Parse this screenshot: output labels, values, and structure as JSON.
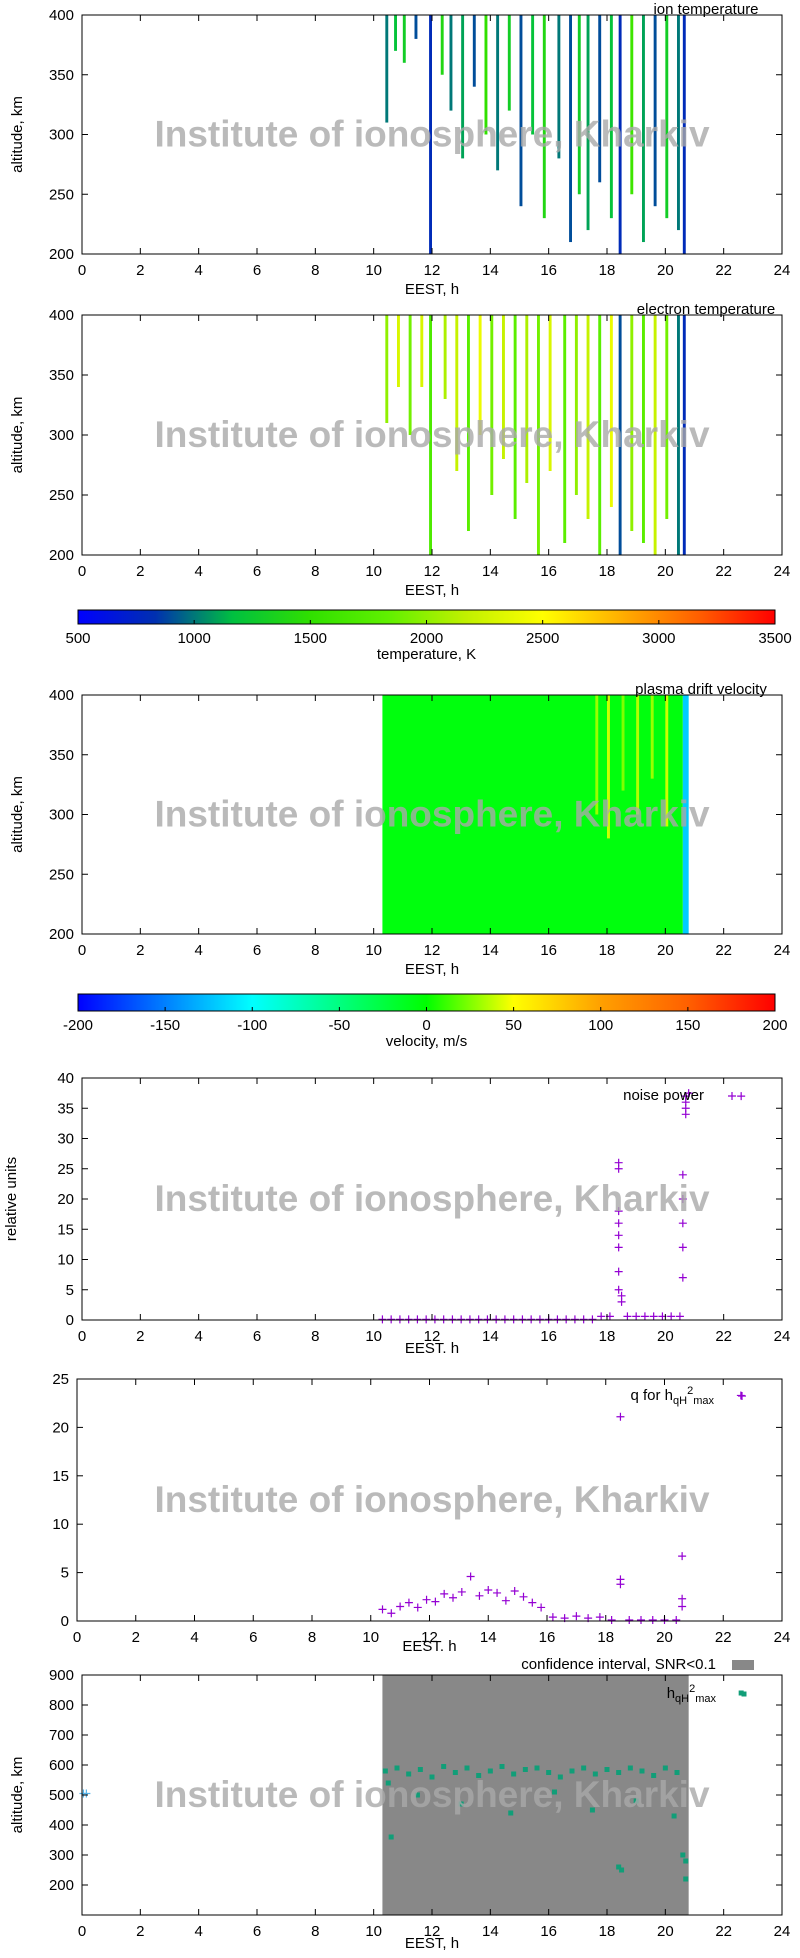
{
  "watermark": "Institute of ionosphere, Kharkiv",
  "chart_data": [
    {
      "type": "heatmap",
      "title": "ion temperature",
      "xlabel": "EEST, h",
      "ylabel": "altitude, km",
      "xlim": [
        0,
        24
      ],
      "xticks": [
        0,
        2,
        4,
        6,
        8,
        10,
        12,
        14,
        16,
        18,
        20,
        22,
        24
      ],
      "ylim": [
        200,
        400
      ],
      "yticks": [
        200,
        250,
        300,
        350,
        400
      ],
      "x0": [
        10.4,
        10.7,
        11.0,
        11.4,
        11.9,
        12.3,
        12.6,
        13.0,
        13.4,
        13.8,
        14.2,
        14.6,
        15.0,
        15.4,
        15.8,
        16.3,
        16.7,
        17.0,
        17.3,
        17.7,
        18.1,
        18.4,
        18.8,
        19.2,
        19.6,
        20.0,
        20.4,
        20.6
      ],
      "x1": [
        10.5,
        10.8,
        11.1,
        11.5,
        12.0,
        12.4,
        12.7,
        13.1,
        13.5,
        13.9,
        14.3,
        14.7,
        15.1,
        15.5,
        15.9,
        16.4,
        16.8,
        17.1,
        17.4,
        17.8,
        18.2,
        18.5,
        18.9,
        19.3,
        19.7,
        20.1,
        20.5,
        20.7
      ],
      "y0": [
        310,
        370,
        360,
        380,
        200,
        350,
        320,
        280,
        340,
        300,
        270,
        320,
        240,
        300,
        230,
        280,
        210,
        250,
        220,
        260,
        230,
        200,
        250,
        210,
        240,
        230,
        220,
        200
      ],
      "y1": [
        400,
        400,
        400,
        400,
        400,
        400,
        400,
        400,
        400,
        400,
        400,
        400,
        400,
        400,
        400,
        400,
        400,
        400,
        400,
        400,
        400,
        400,
        400,
        400,
        400,
        400,
        400,
        400
      ],
      "values": [
        1000,
        1200,
        1300,
        900,
        800,
        1400,
        1000,
        1100,
        900,
        1500,
        1000,
        1300,
        900,
        1200,
        1400,
        1000,
        900,
        1300,
        1100,
        900,
        1200,
        800,
        1600,
        1100,
        900,
        1300,
        1000,
        800
      ]
    },
    {
      "type": "heatmap",
      "title": "electron temperature",
      "xlabel": "EEST, h",
      "ylabel": "altitude, km",
      "xlim": [
        0,
        24
      ],
      "xticks": [
        0,
        2,
        4,
        6,
        8,
        10,
        12,
        14,
        16,
        18,
        20,
        22,
        24
      ],
      "ylim": [
        200,
        400
      ],
      "yticks": [
        200,
        250,
        300,
        350,
        400
      ],
      "x0": [
        10.4,
        10.8,
        11.2,
        11.6,
        11.9,
        12.4,
        12.8,
        13.2,
        13.6,
        14.0,
        14.4,
        14.8,
        15.2,
        15.6,
        16.0,
        16.5,
        16.9,
        17.3,
        17.7,
        18.1,
        18.4,
        18.8,
        19.2,
        19.6,
        20.0,
        20.4,
        20.6
      ],
      "x1": [
        10.5,
        10.9,
        11.3,
        11.7,
        12.0,
        12.5,
        12.9,
        13.3,
        13.7,
        14.1,
        14.5,
        14.9,
        15.3,
        15.7,
        16.1,
        16.6,
        17.0,
        17.4,
        17.8,
        18.2,
        18.5,
        18.9,
        19.3,
        19.7,
        20.1,
        20.5,
        20.7
      ],
      "y0": [
        310,
        340,
        300,
        340,
        200,
        330,
        270,
        220,
        300,
        250,
        280,
        230,
        260,
        200,
        270,
        210,
        250,
        230,
        200,
        240,
        200,
        220,
        210,
        200,
        230,
        200,
        200
      ],
      "y1": [
        400,
        400,
        400,
        400,
        400,
        400,
        400,
        400,
        400,
        400,
        400,
        400,
        400,
        400,
        400,
        400,
        400,
        400,
        400,
        400,
        400,
        400,
        400,
        400,
        400,
        400,
        400
      ],
      "values": [
        2000,
        2300,
        1900,
        2300,
        1700,
        2100,
        2200,
        1800,
        2400,
        1900,
        2200,
        1800,
        2100,
        1900,
        2300,
        1800,
        2000,
        2200,
        1800,
        2400,
        900,
        2000,
        1800,
        2200,
        1900,
        1000,
        800
      ]
    },
    {
      "type": "colorbar",
      "xlabel": "temperature, K",
      "xlim": [
        500,
        3500
      ],
      "xticks": [
        500,
        1000,
        1500,
        2000,
        2500,
        3000,
        3500
      ],
      "colors": [
        "#0000ff",
        "#0030b0",
        "#00c040",
        "#30e000",
        "#60f000",
        "#c0f000",
        "#ffff00",
        "#ffb000",
        "#ff6000",
        "#ff0000"
      ]
    },
    {
      "type": "heatmap",
      "title": "plasma drift velocity",
      "xlabel": "EEST, h",
      "ylabel": "altitude, km",
      "xlim": [
        0,
        24
      ],
      "xticks": [
        0,
        2,
        4,
        6,
        8,
        10,
        12,
        14,
        16,
        18,
        20,
        22,
        24
      ],
      "ylim": [
        200,
        400
      ],
      "yticks": [
        200,
        250,
        300,
        350,
        400
      ],
      "x0": [
        10.3,
        17.6,
        18.0,
        18.5,
        19.0,
        19.5,
        20.0,
        20.6
      ],
      "x1": [
        20.6,
        17.7,
        18.1,
        18.6,
        19.1,
        19.6,
        20.1,
        20.8
      ],
      "y0": [
        200,
        300,
        280,
        320,
        300,
        330,
        290,
        200
      ],
      "y1": [
        400,
        400,
        400,
        400,
        400,
        400,
        400,
        400
      ],
      "values": [
        -5,
        30,
        40,
        25,
        35,
        30,
        40,
        -120
      ]
    },
    {
      "type": "colorbar",
      "xlabel": "velocity, m/s",
      "xlim": [
        -200,
        200
      ],
      "xticks": [
        -200,
        -150,
        -100,
        -50,
        0,
        50,
        100,
        150,
        200
      ],
      "colors": [
        "#0000ff",
        "#0080ff",
        "#00ffff",
        "#00ff80",
        "#00ff00",
        "#ffff00",
        "#ffa000",
        "#ff6000",
        "#ff0000"
      ]
    },
    {
      "type": "scatter",
      "xlabel": "EEST. h",
      "ylabel": "relative units",
      "xlim": [
        0,
        24
      ],
      "xticks": [
        0,
        2,
        4,
        6,
        8,
        10,
        12,
        14,
        16,
        18,
        20,
        22,
        24
      ],
      "ylim": [
        0,
        40
      ],
      "yticks": [
        0,
        5,
        10,
        15,
        20,
        25,
        30,
        35,
        40
      ],
      "series": [
        {
          "name": "noise power",
          "color": "#9400d3",
          "marker": "plus",
          "x": [
            10.3,
            10.6,
            10.9,
            11.2,
            11.5,
            11.8,
            12.1,
            12.4,
            12.7,
            13.0,
            13.3,
            13.6,
            13.9,
            14.2,
            14.5,
            14.8,
            15.1,
            15.4,
            15.7,
            16.0,
            16.3,
            16.6,
            16.9,
            17.2,
            17.5,
            17.8,
            18.1,
            18.7,
            19.0,
            19.3,
            19.6,
            19.9,
            20.2,
            20.5,
            18.4,
            18.4,
            18.4,
            18.4,
            18.4,
            18.4,
            18.4,
            18.4,
            18.5,
            18.5,
            20.6,
            20.6,
            20.6,
            20.6,
            20.6,
            20.7,
            20.7,
            20.7,
            20.7,
            20.8,
            22.6
          ],
          "y": [
            0.1,
            0.1,
            0.1,
            0.1,
            0.1,
            0.1,
            0.1,
            0.1,
            0.1,
            0.1,
            0.1,
            0.1,
            0.1,
            0.1,
            0.1,
            0.1,
            0.1,
            0.1,
            0.1,
            0.1,
            0.1,
            0.1,
            0.1,
            0.1,
            0.1,
            0.6,
            0.6,
            0.6,
            0.6,
            0.6,
            0.6,
            0.6,
            0.6,
            0.6,
            5,
            8,
            12,
            14,
            16,
            18,
            25,
            26,
            3,
            4,
            7,
            12,
            16,
            20,
            24,
            34,
            35,
            36,
            37,
            37.5,
            37
          ]
        }
      ]
    },
    {
      "type": "scatter",
      "xlabel": "EEST. h",
      "xlim": [
        0,
        24
      ],
      "xticks": [
        0,
        2,
        4,
        6,
        8,
        10,
        12,
        14,
        16,
        18,
        20,
        22,
        24
      ],
      "ylim": [
        0,
        25
      ],
      "yticks": [
        0,
        5,
        10,
        15,
        20,
        25
      ],
      "series": [
        {
          "name": [
            "q for h",
            "qH",
            "2",
            "max"
          ],
          "color": "#9400d3",
          "marker": "plus",
          "x": [
            10.4,
            10.7,
            11.0,
            11.3,
            11.6,
            11.9,
            12.2,
            12.5,
            12.8,
            13.1,
            13.4,
            13.7,
            14.0,
            14.3,
            14.6,
            14.9,
            15.2,
            15.5,
            15.8,
            16.2,
            16.6,
            17.0,
            17.4,
            17.8,
            18.2,
            18.8,
            19.2,
            19.6,
            20.0,
            20.4,
            18.5,
            18.5,
            18.5,
            20.6,
            20.6,
            20.6,
            22.6
          ],
          "y": [
            1.2,
            0.8,
            1.5,
            1.9,
            1.4,
            2.2,
            2.0,
            2.8,
            2.4,
            3.0,
            4.6,
            2.6,
            3.2,
            2.9,
            2.1,
            3.1,
            2.5,
            1.9,
            1.4,
            0.4,
            0.3,
            0.5,
            0.3,
            0.4,
            0.1,
            0.1,
            0.1,
            0.1,
            0.1,
            0.1,
            3.8,
            4.3,
            21.1,
            1.5,
            2.3,
            6.7,
            23.3
          ]
        }
      ]
    },
    {
      "type": "scatter",
      "xlabel": "EEST, h",
      "ylabel": "altitude, km",
      "xlim": [
        0,
        24
      ],
      "xticks": [
        0,
        2,
        4,
        6,
        8,
        10,
        12,
        14,
        16,
        18,
        20,
        22,
        24
      ],
      "ylim": [
        100,
        900
      ],
      "yticks": [
        200,
        300,
        400,
        500,
        600,
        700,
        800,
        900
      ],
      "series": [
        {
          "name": "confidence interval, SNR<0.1",
          "color": "#888888",
          "x": [
            10.3,
            20.8
          ],
          "ylow": [
            100,
            100
          ],
          "yhigh": [
            900,
            900
          ]
        },
        {
          "name": [
            "h",
            "qH",
            "2",
            "max"
          ],
          "color": "#119e78",
          "marker": "square",
          "x": [
            10.4,
            10.8,
            11.2,
            11.6,
            12.0,
            12.4,
            12.8,
            13.2,
            13.6,
            14.0,
            14.4,
            14.8,
            15.2,
            15.6,
            16.0,
            16.4,
            16.8,
            17.2,
            17.6,
            18.0,
            18.4,
            18.8,
            19.2,
            19.6,
            20.0,
            20.4,
            10.5,
            10.6,
            11.5,
            13.0,
            14.7,
            16.2,
            17.5,
            19.0,
            20.3,
            18.4,
            18.5,
            20.6,
            20.7,
            20.7,
            22.6
          ],
          "y": [
            580,
            590,
            570,
            585,
            560,
            595,
            575,
            590,
            565,
            580,
            595,
            570,
            585,
            590,
            575,
            560,
            580,
            590,
            570,
            585,
            575,
            590,
            580,
            565,
            590,
            575,
            540,
            360,
            500,
            470,
            440,
            510,
            450,
            480,
            430,
            260,
            250,
            300,
            220,
            280,
            840
          ]
        },
        {
          "color": "#56b4e9",
          "marker": "plus",
          "x": [
            0.05,
            0.15
          ],
          "y": [
            505,
            505
          ]
        }
      ]
    }
  ]
}
